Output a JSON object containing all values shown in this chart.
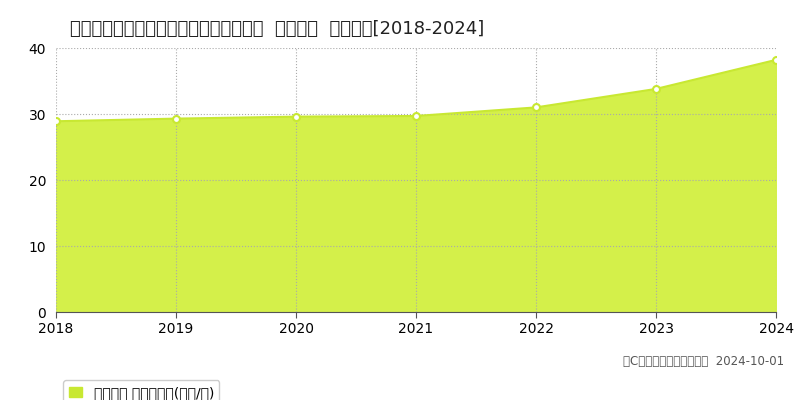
{
  "title": "茨城県つくば市学園の森２丁目２９番３  基準地価  地価推移[2018-2024]",
  "years": [
    2018,
    2019,
    2020,
    2021,
    2022,
    2023,
    2024
  ],
  "values": [
    28.9,
    29.3,
    29.6,
    29.7,
    31.0,
    33.8,
    38.2
  ],
  "ylim": [
    0,
    40
  ],
  "yticks": [
    0,
    10,
    20,
    30,
    40
  ],
  "line_color": "#c8e832",
  "fill_color": "#d4f04a",
  "marker_color": "#ffffff",
  "marker_edge_color": "#c8e832",
  "grid_color": "#aaaaaa",
  "grid_linestyle": "dotted",
  "background_color": "#ffffff",
  "legend_label": "基準地価 平均坪単価(万円/坪)",
  "legend_marker_color": "#c8e832",
  "copyright_text": "（C）土地価格ドットコム  2024-10-01",
  "title_fontsize": 13,
  "axis_fontsize": 10,
  "legend_fontsize": 10,
  "copyright_fontsize": 8.5
}
